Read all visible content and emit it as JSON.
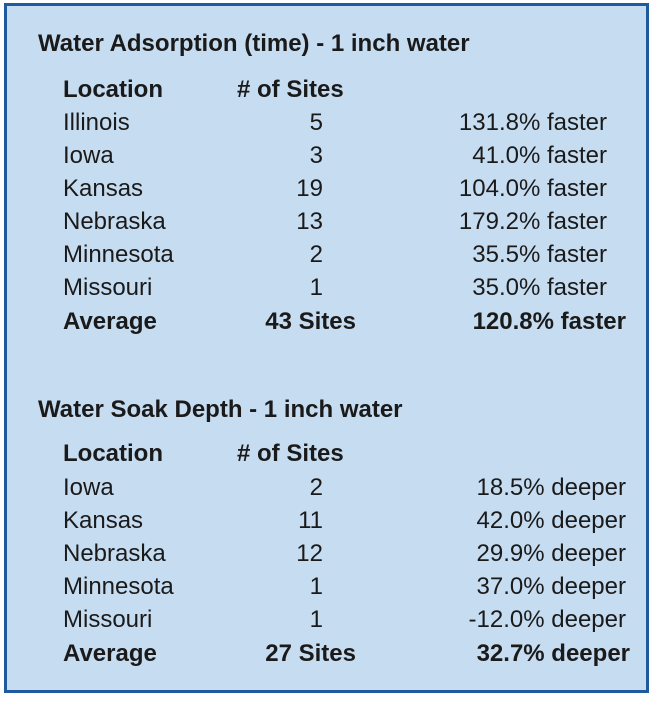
{
  "section1": {
    "title": "Water Adsorption (time) - 1 inch water",
    "header": {
      "location": "Location",
      "sites": "# of Sites"
    },
    "rows": [
      {
        "location": "Illinois",
        "sites": "5",
        "result": "131.8% faster"
      },
      {
        "location": "Iowa",
        "sites": "3",
        "result": "41.0% faster"
      },
      {
        "location": "Kansas",
        "sites": "19",
        "result": "104.0% faster"
      },
      {
        "location": "Nebraska",
        "sites": "13",
        "result": "179.2% faster"
      },
      {
        "location": "Minnesota",
        "sites": "2",
        "result": "35.5% faster"
      },
      {
        "location": "Missouri",
        "sites": "1",
        "result": "35.0% faster"
      }
    ],
    "average": {
      "location": "Average",
      "sites": "43 Sites",
      "result": "120.8% faster"
    }
  },
  "section2": {
    "title": "Water Soak Depth - 1 inch water",
    "header": {
      "location": "Location",
      "sites": "# of Sites"
    },
    "rows": [
      {
        "location": "Iowa",
        "sites": "2",
        "result": "18.5% deeper"
      },
      {
        "location": "Kansas",
        "sites": "11",
        "result": "42.0% deeper"
      },
      {
        "location": "Nebraska",
        "sites": "12",
        "result": "29.9% deeper"
      },
      {
        "location": "Minnesota",
        "sites": "1",
        "result": "37.0% deeper"
      },
      {
        "location": "Missouri",
        "sites": "1",
        "result": "-12.0% deeper"
      }
    ],
    "average": {
      "location": "Average",
      "sites": "27 Sites",
      "result": "32.7% deeper"
    }
  },
  "colors": {
    "panel_background": "#c6dcf1",
    "panel_border": "#1f5a9e",
    "text": "#1a1a1a"
  }
}
